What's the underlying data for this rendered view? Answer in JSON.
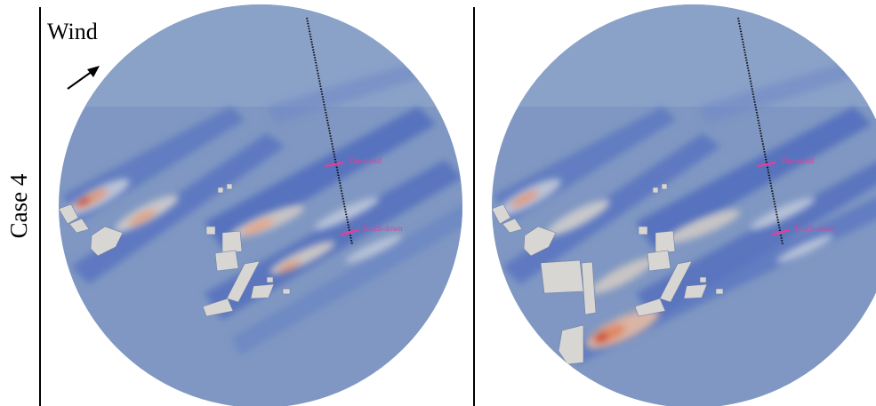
{
  "row_label": "Case 4",
  "wind_label": "Wind",
  "panels": [
    {
      "id": "left",
      "threshold_label": "Threshold",
      "touchdown_label": "Touch-down"
    },
    {
      "id": "right",
      "threshold_label": "Threshold",
      "touchdown_label": "Touch-down"
    }
  ],
  "colors": {
    "domain_base": "#7f97c2",
    "low_velocity": "#4a63b8",
    "mid_velocity": "#b7c2d8",
    "high_velocity": "#e6a487",
    "peak_velocity": "#c8462a",
    "building": "#d8d6d2",
    "runway_marker": "#e0409a",
    "glide_path": "#111111"
  },
  "icons": [
    "wind-direction-arrow-icon"
  ]
}
